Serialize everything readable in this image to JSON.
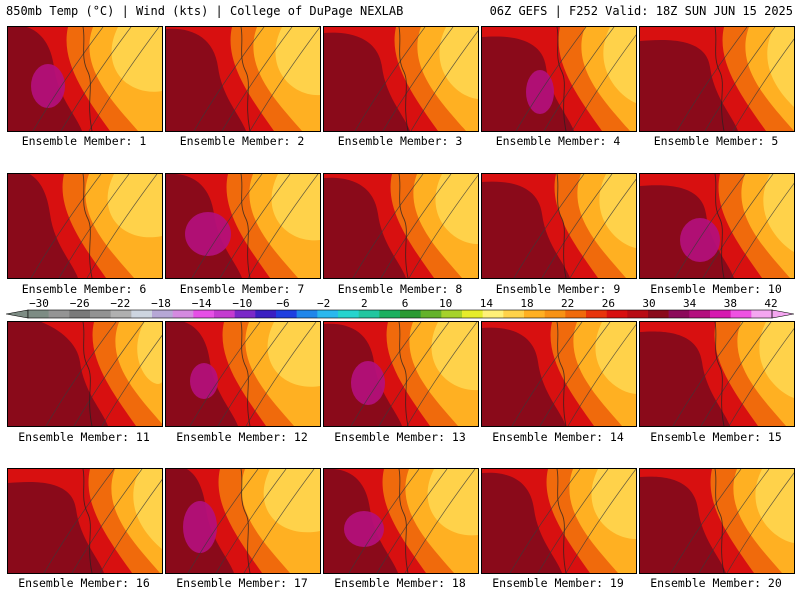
{
  "header": {
    "left": "850mb Temp (°C) | Wind (kts) | College of DuPage NEXLAB",
    "right": "06Z GEFS | F252 Valid: 18Z SUN JUN 15 2025"
  },
  "caption_prefix": "Ensemble Member: ",
  "members": [
    1,
    2,
    3,
    4,
    5,
    6,
    7,
    8,
    9,
    10,
    11,
    12,
    13,
    14,
    15,
    16,
    17,
    18,
    19,
    20
  ],
  "colorbar": {
    "labels": [
      "-30",
      "-26",
      "-22",
      "-18",
      "-14",
      "-10",
      "-6",
      "-2",
      "2",
      "6",
      "10",
      "14",
      "18",
      "22",
      "26",
      "30",
      "34",
      "38",
      "42"
    ],
    "colors": [
      "#7d8c84",
      "#949494",
      "#7a7a7a",
      "#929292",
      "#b0b0b0",
      "#cdd5e0",
      "#b6a7d6",
      "#d48ae0",
      "#e64fe6",
      "#c43ad0",
      "#7a28c8",
      "#3a1fc2",
      "#1e3fe0",
      "#1f86ea",
      "#2ab8ee",
      "#26d4ce",
      "#22c6a0",
      "#1ab060",
      "#2a9a32",
      "#64b22a",
      "#a6d22a",
      "#e6ec2a",
      "#fff078",
      "#ffd24a",
      "#ffb022",
      "#f89214",
      "#f06a0c",
      "#e8340c",
      "#d81010",
      "#b80c14",
      "#8a0a1a",
      "#8c0a5a",
      "#b4107e",
      "#d618b0",
      "#ee52e2",
      "#f4a6f0"
    ]
  },
  "map_palette": {
    "hot": "#8a0a1a",
    "warm": "#d81010",
    "mild": "#f06a0c",
    "cool": "#ffb022",
    "cooler": "#ffd24a",
    "extreme": "#b4107e"
  }
}
